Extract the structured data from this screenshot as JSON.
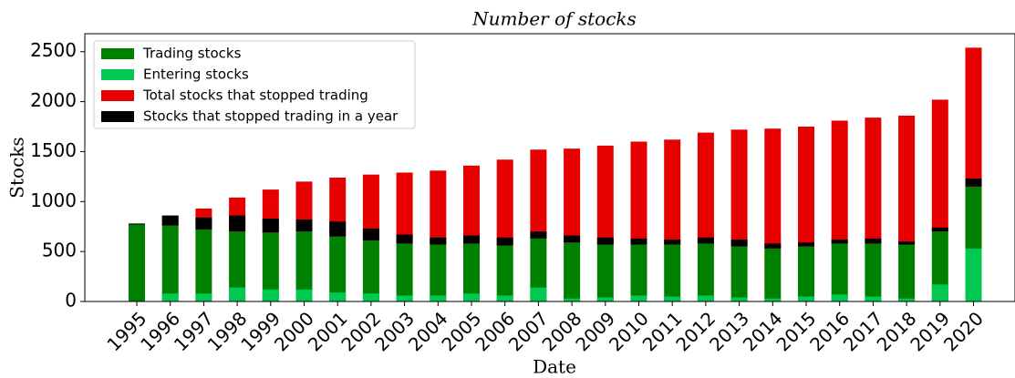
{
  "chart_data": {
    "type": "bar",
    "title": "Number of stocks",
    "x_label": "Date",
    "y_label": "Stocks",
    "categories": [
      "1995",
      "1996",
      "1997",
      "1998",
      "1999",
      "2000",
      "2001",
      "2002",
      "2003",
      "2004",
      "2005",
      "2006",
      "2007",
      "2008",
      "2009",
      "2010",
      "2011",
      "2012",
      "2013",
      "2014",
      "2015",
      "2016",
      "2017",
      "2018",
      "2019",
      "2020"
    ],
    "series": [
      {
        "name": "Trading stocks",
        "color": "#008000",
        "values": [
          770,
          760,
          720,
          700,
          690,
          700,
          650,
          610,
          580,
          570,
          580,
          560,
          630,
          590,
          570,
          570,
          570,
          580,
          550,
          530,
          550,
          580,
          580,
          570,
          700,
          1150
        ]
      },
      {
        "name": "Entering stocks",
        "color": "#00c851",
        "values": [
          0,
          80,
          80,
          140,
          120,
          120,
          90,
          80,
          60,
          60,
          80,
          60,
          140,
          30,
          40,
          60,
          50,
          60,
          40,
          30,
          50,
          70,
          50,
          30,
          170,
          530
        ]
      },
      {
        "name": "Total stocks that stopped trading",
        "color": "#e60000",
        "values": [
          10,
          100,
          210,
          340,
          430,
          500,
          590,
          660,
          710,
          740,
          780,
          860,
          890,
          940,
          990,
          1030,
          1050,
          1110,
          1170,
          1200,
          1200,
          1230,
          1260,
          1290,
          1320,
          1390
        ]
      },
      {
        "name": "Stocks that stopped trading in a year",
        "color": "#000000",
        "values": [
          10,
          100,
          120,
          160,
          140,
          120,
          150,
          120,
          90,
          70,
          80,
          80,
          70,
          70,
          70,
          60,
          50,
          60,
          70,
          50,
          40,
          40,
          50,
          30,
          40,
          80
        ]
      }
    ],
    "ylim": [
      0,
      2680
    ],
    "yticks": [
      0,
      500,
      1000,
      1500,
      2000,
      2500
    ],
    "legend": "upper left"
  }
}
